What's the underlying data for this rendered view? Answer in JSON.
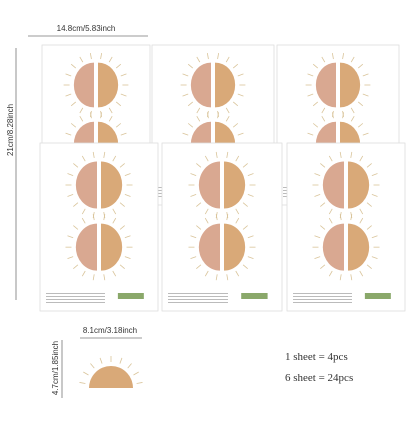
{
  "dimensions": {
    "sheet_width": "14.8cm/5.83inch",
    "sheet_height": "21cm/8.28inch",
    "piece_width": "8.1cm/3.18inch",
    "piece_height": "4.7cm/1.85inch"
  },
  "quantities": [
    "1 sheet = 4pcs",
    "6 sheet = 24pcs"
  ]
}
